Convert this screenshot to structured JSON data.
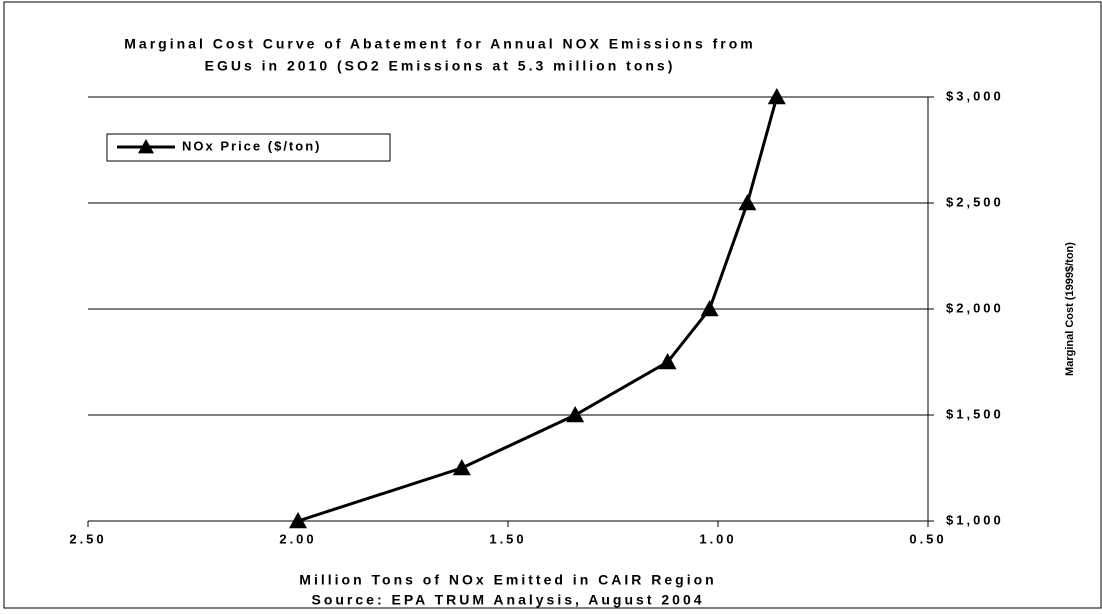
{
  "chart_data": {
    "type": "line",
    "title": [
      "Marginal Cost Curve of Abatement for Annual NOX Emissions from",
      "EGUs in 2010 (SO2 Emissions at 5.3 million tons)"
    ],
    "xlabel": "Million Tons of NOx Emitted in CAIR Region",
    "source": "Source: EPA TRUM Analysis, August 2004",
    "ylabel": "Marginal Cost (1999$/ton)",
    "x": [
      2.0,
      1.61,
      1.34,
      1.12,
      1.02,
      0.93,
      0.86
    ],
    "series": [
      {
        "name": "NOx Price ($/ton)",
        "color": "#000000",
        "values": [
          1000,
          1250,
          1500,
          1750,
          2000,
          2500,
          3000
        ]
      }
    ],
    "xlim": [
      2.5,
      0.5
    ],
    "xticks": [
      {
        "value": 2.5,
        "label": "2.50"
      },
      {
        "value": 2.0,
        "label": "2.00"
      },
      {
        "value": 1.5,
        "label": "1.50"
      },
      {
        "value": 1.0,
        "label": "1.00"
      },
      {
        "value": 0.5,
        "label": "0.50"
      }
    ],
    "ylim": [
      1000,
      3000
    ],
    "yticks": [
      {
        "value": 1000,
        "label": "$1,000"
      },
      {
        "value": 1500,
        "label": "$1,500"
      },
      {
        "value": 2000,
        "label": "$2,000"
      },
      {
        "value": 2500,
        "label": "$2,500"
      },
      {
        "value": 3000,
        "label": "$3,000"
      }
    ],
    "grid": true,
    "legend": "upper left"
  }
}
